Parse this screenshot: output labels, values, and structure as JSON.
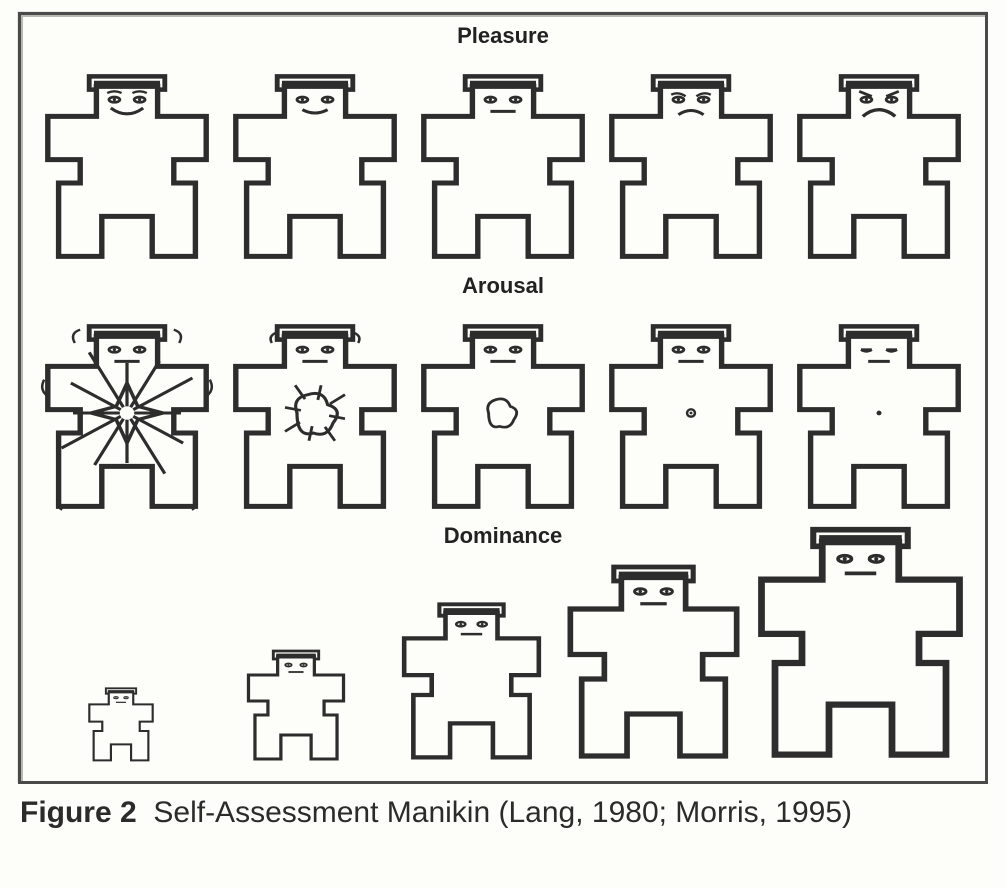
{
  "figure": {
    "border_color": "#4a4a4a",
    "background_color": "#fdfdf9",
    "stroke": "#2d2d2d",
    "stroke_width": 3,
    "label_fontsize": 22,
    "label_color": "#222222",
    "caption_prefix": "Figure 2",
    "caption_text": "Self-Assessment Manikin (Lang, 1980; Morris, 1995)",
    "caption_fontsize": 30,
    "rows": [
      {
        "label": "Pleasure",
        "type": "pleasure",
        "items": [
          {
            "face": "happy2",
            "size": 1.0,
            "arousal": 0
          },
          {
            "face": "happy1",
            "size": 1.0,
            "arousal": 0
          },
          {
            "face": "neutral",
            "size": 1.0,
            "arousal": 0
          },
          {
            "face": "sad1",
            "size": 1.0,
            "arousal": 0
          },
          {
            "face": "sad2",
            "size": 1.0,
            "arousal": 0
          }
        ]
      },
      {
        "label": "Arousal",
        "type": "arousal",
        "items": [
          {
            "face": "neutral",
            "size": 1.0,
            "arousal": 5
          },
          {
            "face": "neutral",
            "size": 1.0,
            "arousal": 4
          },
          {
            "face": "neutral",
            "size": 1.0,
            "arousal": 3
          },
          {
            "face": "neutral",
            "size": 1.0,
            "arousal": 2
          },
          {
            "face": "sleepy",
            "size": 1.0,
            "arousal": 1
          }
        ]
      },
      {
        "label": "Dominance",
        "type": "dominance",
        "items": [
          {
            "face": "neutral",
            "size": 0.4,
            "arousal": 0
          },
          {
            "face": "neutral",
            "size": 0.6,
            "arousal": 0
          },
          {
            "face": "neutral",
            "size": 0.85,
            "arousal": 0
          },
          {
            "face": "neutral",
            "size": 1.05,
            "arousal": 0
          },
          {
            "face": "neutral",
            "size": 1.25,
            "arousal": 0
          }
        ]
      }
    ]
  }
}
